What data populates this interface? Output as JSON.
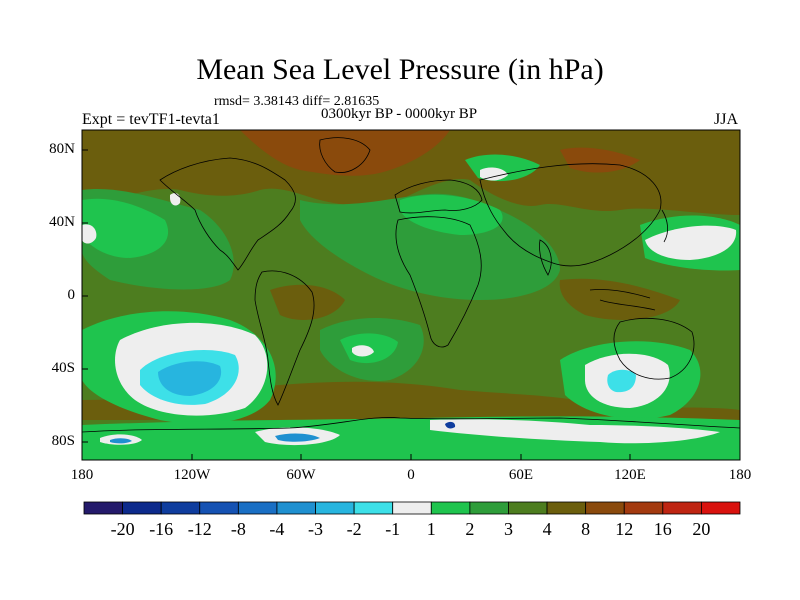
{
  "title": "Mean Sea Level Pressure (in hPa)",
  "stats": "rmsd= 3.38143 diff= 2.81635",
  "period": "0300kyr BP - 0000kyr BP",
  "expt": "Expt = tevTF1-tevta1",
  "season": "JJA",
  "lat_labels": [
    "80N",
    "40N",
    "0",
    "40S",
    "80S"
  ],
  "lon_labels": [
    "180",
    "120W",
    "60W",
    "0",
    "60E",
    "120E",
    "180"
  ],
  "colorbar": {
    "labels": [
      "-20",
      "-16",
      "-12",
      "-8",
      "-4",
      "-3",
      "-2",
      "-1",
      "1",
      "2",
      "3",
      "4",
      "8",
      "12",
      "16",
      "20"
    ],
    "colors": [
      "#241a6b",
      "#0d2a8c",
      "#0f3d9e",
      "#1552b3",
      "#1a6fc4",
      "#1f90d0",
      "#27b5df",
      "#3de0e8",
      "#eeeeee",
      "#1fc44e",
      "#2e9d3a",
      "#4d7d1f",
      "#6b5e0d",
      "#8a4a0c",
      "#a33a0f",
      "#bf2512",
      "#d9120e"
    ]
  },
  "map_colors": {
    "brown": "#6b5e0d",
    "olive": "#4d7d1f",
    "green": "#2e9d3a",
    "lightgreen": "#1fc44e",
    "white": "#eeeeee",
    "cyan": "#3de0e8",
    "lightblue": "#27b5df",
    "blue": "#1f90d0",
    "darkblue": "#0f3d9e",
    "rust": "#8a4a0c"
  }
}
